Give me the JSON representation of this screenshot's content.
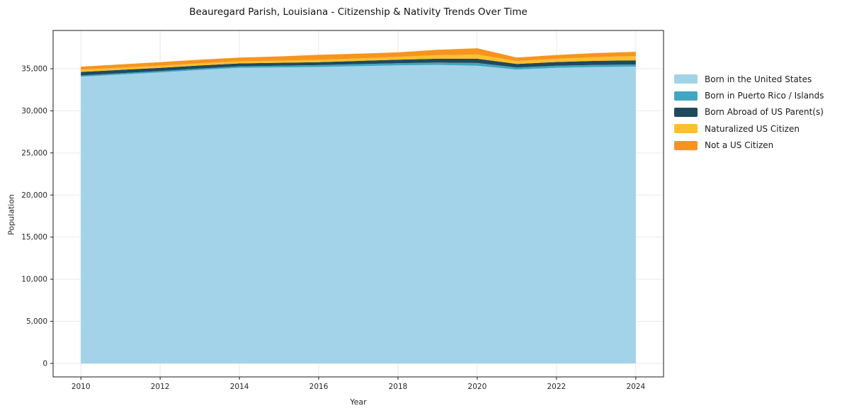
{
  "chart_data": {
    "type": "area",
    "stacked": true,
    "title": "Beauregard Parish, Louisiana - Citizenship & Nativity Trends Over Time",
    "xlabel": "Year",
    "ylabel": "Population",
    "x": [
      2010,
      2011,
      2012,
      2013,
      2014,
      2015,
      2016,
      2017,
      2018,
      2019,
      2020,
      2021,
      2022,
      2023,
      2024
    ],
    "series": [
      {
        "name": "Born in the United States",
        "color": "#a3d3e8",
        "values": [
          34050,
          34300,
          34550,
          34850,
          35100,
          35150,
          35200,
          35300,
          35400,
          35450,
          35350,
          34900,
          35100,
          35200,
          35250
        ]
      },
      {
        "name": "Born in Puerto Rico / Islands",
        "color": "#41a6c2",
        "values": [
          150,
          160,
          170,
          170,
          180,
          200,
          230,
          240,
          250,
          280,
          330,
          250,
          250,
          250,
          250
        ]
      },
      {
        "name": "Born Abroad of US Parent(s)",
        "color": "#1f4a5e",
        "values": [
          420,
          400,
          380,
          360,
          350,
          350,
          350,
          380,
          420,
          450,
          500,
          420,
          450,
          480,
          500
        ]
      },
      {
        "name": "Naturalized US Citizen",
        "color": "#fdc02f",
        "values": [
          260,
          260,
          260,
          260,
          260,
          260,
          280,
          300,
          340,
          420,
          500,
          330,
          380,
          450,
          500
        ]
      },
      {
        "name": "Not a US Citizen",
        "color": "#f7941e",
        "values": [
          360,
          390,
          420,
          430,
          440,
          500,
          590,
          560,
          530,
          640,
          750,
          430,
          450,
          480,
          510
        ]
      }
    ],
    "xticks": {
      "values": [
        2010,
        2012,
        2014,
        2016,
        2018,
        2020,
        2022,
        2024
      ],
      "labels": [
        "2010",
        "2012",
        "2014",
        "2016",
        "2018",
        "2020",
        "2022",
        "2024"
      ]
    },
    "yticks": {
      "values": [
        0,
        5000,
        10000,
        15000,
        20000,
        25000,
        30000,
        35000
      ],
      "labels": [
        "0",
        "5,000",
        "10,000",
        "15,000",
        "20,000",
        "25,000",
        "30,000",
        "35,000"
      ]
    },
    "xlim": [
      2009.3,
      2024.7
    ],
    "ylim": [
      -1600,
      39540
    ],
    "grid": true,
    "legend_position": "right-outside"
  }
}
